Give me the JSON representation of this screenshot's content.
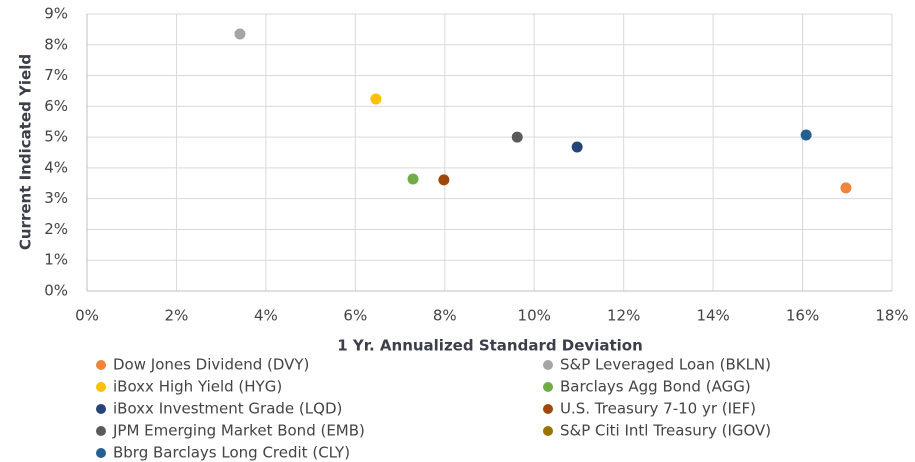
{
  "chart_data": {
    "type": "scatter",
    "x_label": "1 Yr. Annualized Standard Deviation",
    "y_label": "Current Indicated Yield",
    "xlim": [
      0,
      18
    ],
    "xticks": [
      {
        "value": 0,
        "label": "0%"
      },
      {
        "value": 2,
        "label": "2%"
      },
      {
        "value": 4,
        "label": "4%"
      },
      {
        "value": 6,
        "label": "6%"
      },
      {
        "value": 8,
        "label": "8%"
      },
      {
        "value": 10,
        "label": "10%"
      },
      {
        "value": 12,
        "label": "12%"
      },
      {
        "value": 14,
        "label": "14%"
      },
      {
        "value": 16,
        "label": "16%"
      },
      {
        "value": 18,
        "label": "18%"
      }
    ],
    "ylim": [
      0,
      9
    ],
    "yticks": [
      {
        "value": 0,
        "label": "0%"
      },
      {
        "value": 1,
        "label": "1%"
      },
      {
        "value": 2,
        "label": "2%"
      },
      {
        "value": 3,
        "label": "3%"
      },
      {
        "value": 4,
        "label": "4%"
      },
      {
        "value": 5,
        "label": "5%"
      },
      {
        "value": 6,
        "label": "6%"
      },
      {
        "value": 7,
        "label": "7%"
      },
      {
        "value": 8,
        "label": "8%"
      },
      {
        "value": 9,
        "label": "9%"
      }
    ],
    "grid": true,
    "legend": "bottom",
    "series": [
      {
        "name": "Dow Jones Dividend (DVY)",
        "color": "#f0843c",
        "x": [
          16.97
        ],
        "values": [
          3.35
        ]
      },
      {
        "name": "S&P Leveraged Loan (BKLN)",
        "color": "#a5a5a5",
        "x": [
          3.42
        ],
        "values": [
          8.35
        ]
      },
      {
        "name": "iBoxx High Yield (HYG)",
        "color": "#ffc000",
        "x": [
          6.46
        ],
        "values": [
          6.24
        ]
      },
      {
        "name": "Barclays Agg Bond (AGG)",
        "color": "#70ad47",
        "x": [
          7.29
        ],
        "values": [
          3.64
        ]
      },
      {
        "name": "iBoxx Investment Grade (LQD)",
        "color": "#264478",
        "x": [
          10.96
        ],
        "values": [
          4.68
        ]
      },
      {
        "name": "U.S. Treasury 7-10 yr (IEF)",
        "color": "#9e480e",
        "x": [
          7.98
        ],
        "values": [
          3.61
        ]
      },
      {
        "name": "JPM Emerging Market Bond (EMB)",
        "color": "#5a5a5a",
        "x": [
          9.62
        ],
        "values": [
          5.0
        ]
      },
      {
        "name": "S&P Citi Intl Treasury (IGOV)",
        "color": "#997300",
        "x": [],
        "values": []
      },
      {
        "name": "Bbrg Barclays Long Credit (CLY)",
        "color": "#255e91",
        "x": [
          16.08
        ],
        "values": [
          5.07
        ]
      }
    ]
  }
}
